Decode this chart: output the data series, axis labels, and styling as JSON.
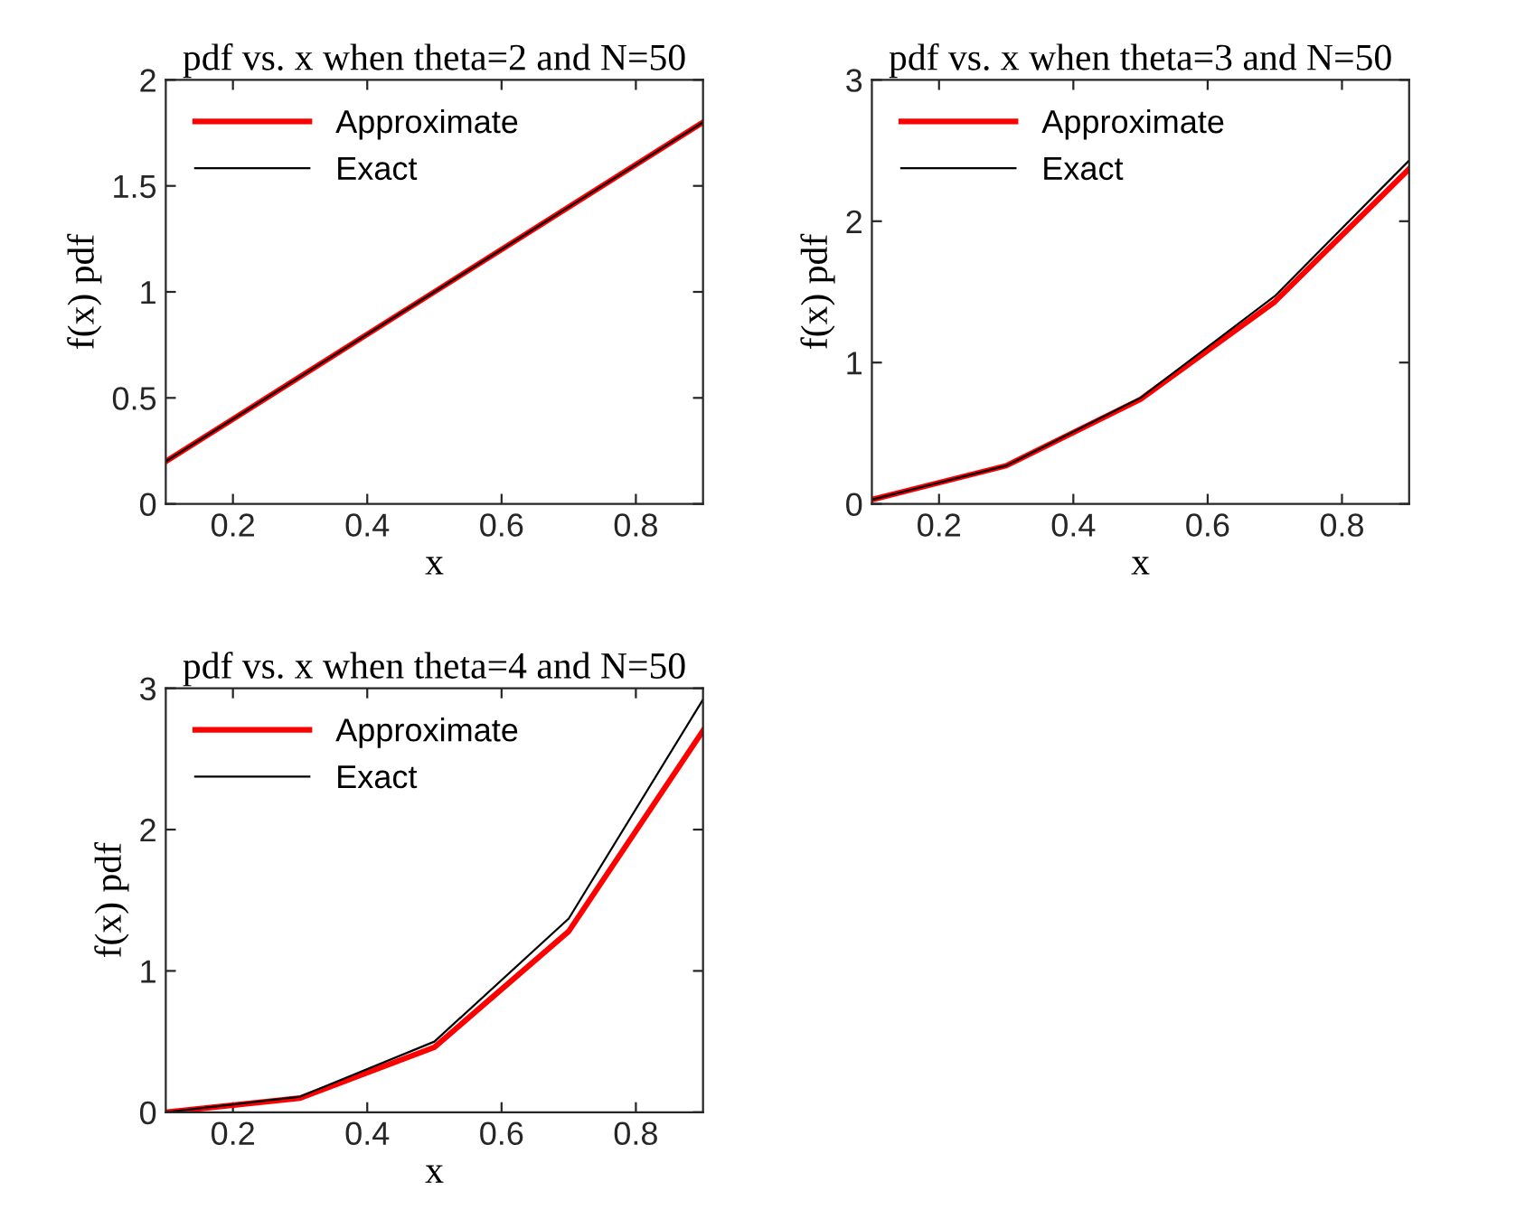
{
  "chart_data": [
    {
      "type": "line",
      "title": "pdf vs. x when theta=2 and N=50",
      "xlabel": "x",
      "ylabel": "f(x) pdf",
      "x": [
        0.1,
        0.3,
        0.5,
        0.7,
        0.9
      ],
      "xlim": [
        0.1,
        0.9
      ],
      "xticks": [
        0.2,
        0.4,
        0.6,
        0.8
      ],
      "ylim": [
        0,
        2
      ],
      "yticks": [
        0,
        0.5,
        1,
        1.5,
        2
      ],
      "legend": "top left",
      "grid": false,
      "series": [
        {
          "name": "Approximate",
          "color": "#ff0000",
          "values": [
            0.2,
            0.6,
            1.0,
            1.4,
            1.8
          ]
        },
        {
          "name": "Exact",
          "color": "#000000",
          "values": [
            0.2,
            0.6,
            1.0,
            1.4,
            1.8
          ]
        }
      ]
    },
    {
      "type": "line",
      "title": "pdf vs. x when theta=3 and N=50",
      "xlabel": "x",
      "ylabel": "f(x) pdf",
      "x": [
        0.1,
        0.3,
        0.5,
        0.7,
        0.9
      ],
      "xlim": [
        0.1,
        0.9
      ],
      "xticks": [
        0.2,
        0.4,
        0.6,
        0.8
      ],
      "ylim": [
        0,
        3
      ],
      "yticks": [
        0,
        1,
        2,
        3
      ],
      "legend": "top left",
      "grid": false,
      "series": [
        {
          "name": "Approximate",
          "color": "#ff0000",
          "values": [
            0.03,
            0.27,
            0.74,
            1.43,
            2.37
          ]
        },
        {
          "name": "Exact",
          "color": "#000000",
          "values": [
            0.03,
            0.27,
            0.75,
            1.47,
            2.43
          ]
        }
      ]
    },
    {
      "type": "line",
      "title": "pdf vs. x when theta=4 and N=50",
      "xlabel": "x",
      "ylabel": "f(x) pdf",
      "x": [
        0.1,
        0.3,
        0.5,
        0.7,
        0.9
      ],
      "xlim": [
        0.1,
        0.9
      ],
      "xticks": [
        0.2,
        0.4,
        0.6,
        0.8
      ],
      "ylim": [
        0,
        3
      ],
      "yticks": [
        0,
        1,
        2,
        3
      ],
      "legend": "top left",
      "grid": false,
      "series": [
        {
          "name": "Approximate",
          "color": "#ff0000",
          "values": [
            0.0,
            0.1,
            0.46,
            1.28,
            2.7
          ]
        },
        {
          "name": "Exact",
          "color": "#000000",
          "values": [
            0.0,
            0.11,
            0.5,
            1.37,
            2.92
          ]
        }
      ]
    }
  ]
}
